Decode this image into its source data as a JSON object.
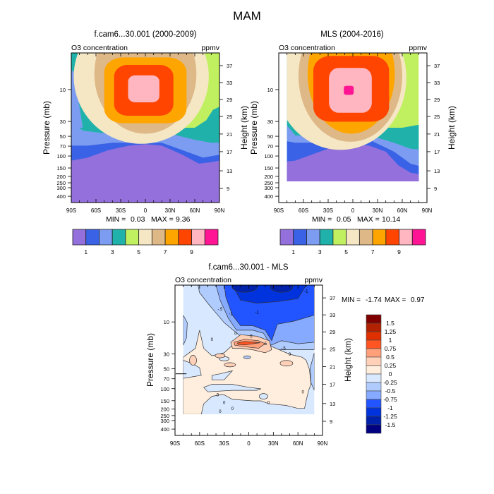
{
  "figure_title": "MAM",
  "chart_data": [
    {
      "type": "heatmap",
      "id": "model",
      "title": "f.cam6...30.001 (2000-2009)",
      "left_string": "O3 concentration",
      "right_string": "ppmv",
      "xlabel": "",
      "ylabel": "Pressure (mb)",
      "ylabel_right": "Height (km)",
      "x_ticks": [
        "90S",
        "60S",
        "30S",
        "0",
        "30N",
        "60N",
        "90N"
      ],
      "xlim": [
        -90,
        90
      ],
      "y_ticks": [
        "10",
        "30",
        "50",
        "70",
        "100",
        "150",
        "200",
        "250",
        "300",
        "400"
      ],
      "y_right_ticks": [
        "37",
        "33",
        "29",
        "25",
        "21",
        "17",
        "13",
        "9"
      ],
      "stats": {
        "min_label": "MIN =",
        "min": "0.03",
        "max_label": "MAX =",
        "max": "9.36"
      },
      "colorbar": {
        "colors": [
          "#9370DB",
          "#3A62E6",
          "#7B9CF0",
          "#20B2AA",
          "#C0F060",
          "#F5E6C4",
          "#DEB887",
          "#FFA500",
          "#FF4500",
          "#FFB6C1",
          "#FF1493"
        ],
        "labels": [
          "1",
          "3",
          "5",
          "7",
          "9"
        ]
      },
      "data_extent": [
        -90,
        90
      ],
      "levels_note": "filled contours 1..10 ppmv"
    },
    {
      "type": "heatmap",
      "id": "obs",
      "title": "MLS (2004-2016)",
      "left_string": "O3 concentration",
      "right_string": "ppmv",
      "xlabel": "",
      "ylabel": "Pressure (mb)",
      "ylabel_right": "Height (km)",
      "x_ticks": [
        "90S",
        "60S",
        "30S",
        "0",
        "30N",
        "60N",
        "90N"
      ],
      "xlim": [
        -90,
        90
      ],
      "y_ticks": [
        "10",
        "30",
        "50",
        "70",
        "100",
        "150",
        "200",
        "250",
        "300",
        "400"
      ],
      "y_right_ticks": [
        "37",
        "33",
        "29",
        "25",
        "21",
        "17",
        "13",
        "9"
      ],
      "stats": {
        "min_label": "MIN =",
        "min": "0.05",
        "max_label": "MAX =",
        "max": "10.14"
      },
      "colorbar": {
        "colors": [
          "#9370DB",
          "#3A62E6",
          "#7B9CF0",
          "#20B2AA",
          "#C0F060",
          "#F5E6C4",
          "#DEB887",
          "#FFA500",
          "#FF4500",
          "#FFB6C1",
          "#FF1493"
        ],
        "labels": [
          "1",
          "3",
          "5",
          "7",
          "9"
        ]
      },
      "data_extent": [
        -80,
        80
      ]
    },
    {
      "type": "heatmap",
      "id": "diff",
      "title": "f.cam6...30.001 - MLS",
      "left_string": "O3 concentration",
      "right_string": "ppmv",
      "xlabel": "",
      "ylabel": "Pressure (mb)",
      "ylabel_right": "Height (km)",
      "x_ticks": [
        "90S",
        "60S",
        "30S",
        "0",
        "30N",
        "60N",
        "90N"
      ],
      "xlim": [
        -90,
        90
      ],
      "y_ticks": [
        "10",
        "30",
        "50",
        "70",
        "100",
        "150",
        "200",
        "250",
        "300",
        "400"
      ],
      "y_right_ticks": [
        "37",
        "33",
        "29",
        "25",
        "21",
        "17",
        "13",
        "9"
      ],
      "stats": {
        "min_label": "MIN =",
        "min": "-1.74",
        "max_label": "MAX =",
        "max": "0.97"
      },
      "contour_labels": [
        "-1",
        "-.5",
        "-1",
        "-.5",
        "-.5",
        "0",
        "0",
        "0",
        "0",
        "0",
        "0",
        "0",
        "0",
        "0",
        "0",
        "0",
        ".5"
      ],
      "colorbar": {
        "colors": [
          "#800000",
          "#B22200",
          "#E03000",
          "#FF5522",
          "#FFA07A",
          "#FFD0B8",
          "#FFEEDD",
          "#D8E8FF",
          "#B0CCFF",
          "#85AAFF",
          "#2255FF",
          "#0033DD",
          "#0022AA",
          "#000080"
        ],
        "labels": [
          "1.5",
          "1.25",
          "1",
          "0.75",
          "0.5",
          "0.25",
          "0",
          "-0.25",
          "-0.5",
          "-0.75",
          "-1",
          "-1.25",
          "-1.5"
        ]
      },
      "data_extent": [
        -80,
        80
      ]
    }
  ]
}
